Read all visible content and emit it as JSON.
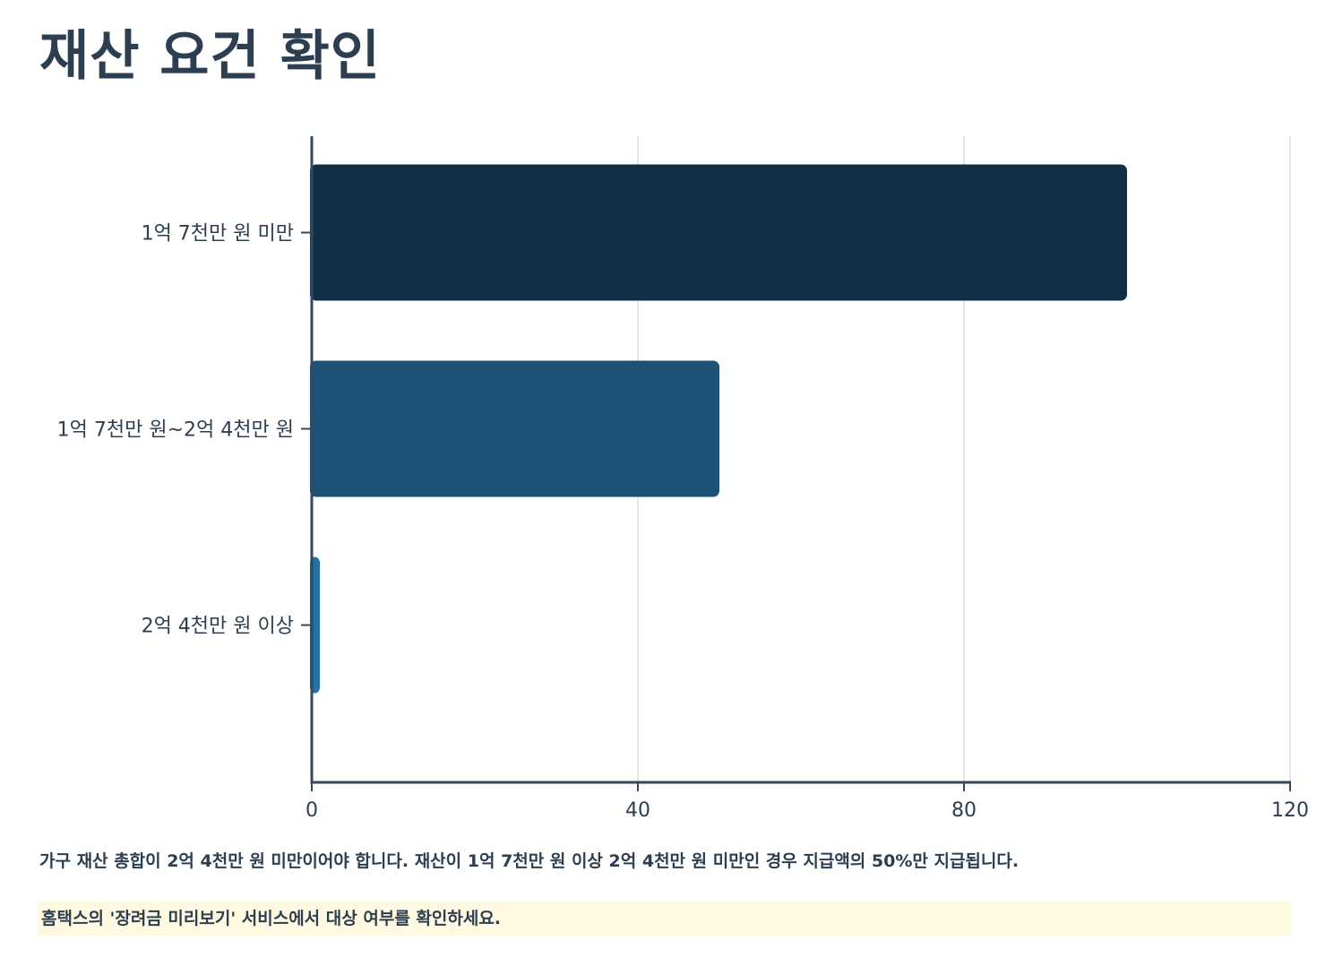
{
  "page": {
    "title": "재산 요건 확인",
    "description": "가구 재산 총합이 2억 4천만 원 미만이어야 합니다. 재산이 1억 7천만 원 이상 2억 4천만 원 미만인 경우 지급액의 50%만 지급됩니다.",
    "note": "홈택스의 '장려금 미리보기' 서비스에서 대상 여부를 확인하세요."
  },
  "chart_data": {
    "type": "bar",
    "orientation": "horizontal",
    "categories": [
      "1억 7천만 원 미만",
      "1억 7천만 원~2억 4천만 원",
      "2억 4천만 원 이상"
    ],
    "values": [
      100,
      50,
      1
    ],
    "colors": [
      "#102f45",
      "#1b5276",
      "#2471a3"
    ],
    "xlim": [
      0,
      120
    ],
    "xticks": [
      "0",
      "40",
      "80",
      "120"
    ],
    "grid": true,
    "legend": "none",
    "title": "",
    "xlabel": "",
    "ylabel": ""
  },
  "colors": {
    "text": "#2c3e50",
    "axis": "#34495e",
    "grid": "#dddddd",
    "note_background": "#fef9e0"
  }
}
